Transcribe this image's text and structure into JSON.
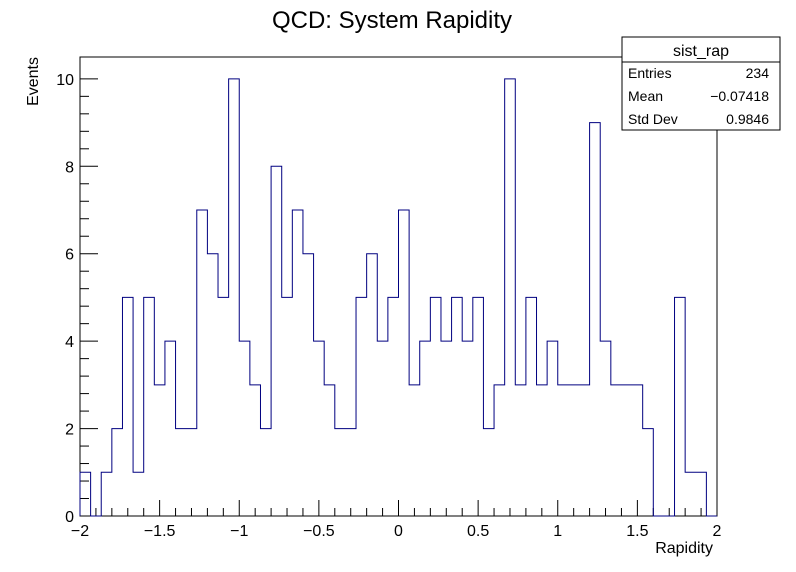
{
  "chart_data": {
    "type": "histogram",
    "title": "QCD:  System Rapidity",
    "xlabel": "Rapidity",
    "ylabel": "Events",
    "xlim": [
      -2,
      2
    ],
    "ylim": [
      0,
      10.5
    ],
    "grid": false,
    "bin_edges_start": -2,
    "bin_width": 0.0667,
    "values": [
      1,
      0,
      1,
      2,
      5,
      1,
      5,
      3,
      4,
      2,
      2,
      7,
      6,
      5,
      10,
      4,
      3,
      2,
      8,
      5,
      7,
      6,
      4,
      3,
      2,
      2,
      5,
      6,
      4,
      5,
      7,
      3,
      4,
      5,
      4,
      5,
      4,
      5,
      2,
      3,
      10,
      3,
      5,
      3,
      4,
      3,
      3,
      3,
      9,
      4,
      3,
      3,
      3,
      2,
      0,
      0,
      5,
      1,
      1,
      0
    ],
    "x_ticks": [
      {
        "value": -2,
        "label": "−2"
      },
      {
        "value": -1.5,
        "label": "−1.5"
      },
      {
        "value": -1,
        "label": "−1"
      },
      {
        "value": -0.5,
        "label": "−0.5"
      },
      {
        "value": 0,
        "label": "0"
      },
      {
        "value": 0.5,
        "label": "0.5"
      },
      {
        "value": 1,
        "label": "1"
      },
      {
        "value": 1.5,
        "label": "1.5"
      },
      {
        "value": 2,
        "label": "2"
      }
    ],
    "y_ticks": [
      {
        "value": 0,
        "label": "0"
      },
      {
        "value": 2,
        "label": "2"
      },
      {
        "value": 4,
        "label": "4"
      },
      {
        "value": 6,
        "label": "6"
      },
      {
        "value": 8,
        "label": "8"
      },
      {
        "value": 10,
        "label": "10"
      }
    ],
    "line_color": "#000080",
    "legend_position": "top-right",
    "stats_box": {
      "name": "sist_rap",
      "rows": [
        {
          "label": "Entries",
          "value": "234"
        },
        {
          "label": "Mean",
          "value": "−0.07418"
        },
        {
          "label": "Std Dev",
          "value": "0.9846"
        }
      ]
    }
  }
}
